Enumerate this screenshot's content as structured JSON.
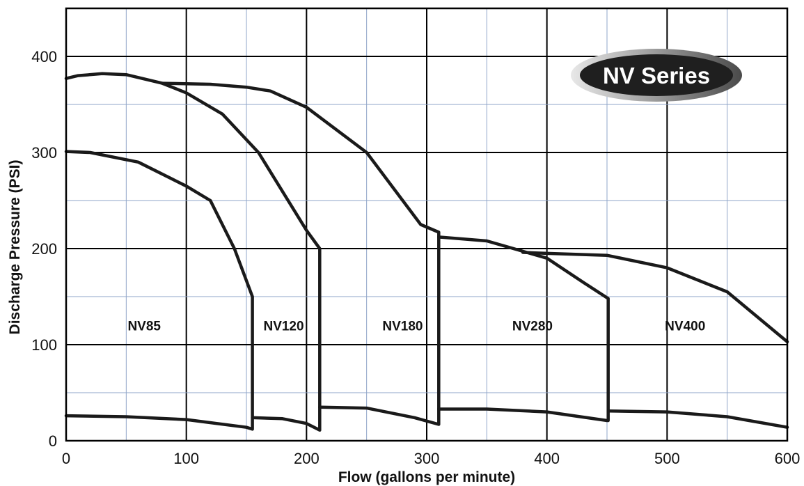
{
  "chart_data": {
    "type": "line",
    "badge": "NV Series",
    "xlabel": "Flow (gallons per minute)",
    "ylabel": "Discharge Pressure (PSI)",
    "xlim": [
      0,
      600
    ],
    "ylim": [
      0,
      450
    ],
    "x_ticks": [
      0,
      100,
      200,
      300,
      400,
      500,
      600
    ],
    "y_ticks": [
      0,
      100,
      200,
      300,
      400
    ],
    "grid": true,
    "minor_grid_step": 50,
    "colors": {
      "major_grid": "#000000",
      "minor_grid": "#8fa4c8",
      "curve": "#1a1a1a",
      "badge": "#1f1f1f"
    },
    "regions": [
      {
        "label": "NV85",
        "x": 65,
        "y": 120
      },
      {
        "label": "NV120",
        "x": 181,
        "y": 120
      },
      {
        "label": "NV180",
        "x": 280,
        "y": 120
      },
      {
        "label": "NV280",
        "x": 388,
        "y": 120
      },
      {
        "label": "NV400",
        "x": 515,
        "y": 120
      }
    ],
    "series": [
      {
        "points": [
          [
            0,
            26
          ],
          [
            50,
            25
          ],
          [
            100,
            22
          ],
          [
            150,
            14
          ],
          [
            155,
            12
          ],
          [
            155,
            150
          ],
          [
            140,
            200
          ],
          [
            120,
            250
          ],
          [
            100,
            265
          ],
          [
            60,
            290
          ],
          [
            20,
            300
          ],
          [
            0,
            301
          ]
        ]
      },
      {
        "points": [
          [
            155,
            24
          ],
          [
            180,
            23
          ],
          [
            200,
            18
          ],
          [
            211,
            11
          ],
          [
            211,
            200
          ],
          [
            200,
            219
          ],
          [
            160,
            300
          ],
          [
            130,
            340
          ],
          [
            100,
            362
          ],
          [
            80,
            372
          ],
          [
            50,
            381
          ],
          [
            30,
            382
          ],
          [
            10,
            380
          ],
          [
            0,
            377
          ]
        ]
      },
      {
        "points": [
          [
            211,
            35
          ],
          [
            250,
            34
          ],
          [
            290,
            24
          ],
          [
            310,
            17
          ],
          [
            310,
            217
          ],
          [
            295,
            225
          ],
          [
            250,
            300
          ],
          [
            200,
            347
          ],
          [
            170,
            364
          ],
          [
            150,
            368
          ],
          [
            120,
            371
          ],
          [
            80,
            372
          ]
        ]
      },
      {
        "points": [
          [
            310,
            33
          ],
          [
            350,
            33
          ],
          [
            400,
            30
          ],
          [
            450,
            21
          ],
          [
            451,
            21
          ],
          [
            451,
            148
          ],
          [
            430,
            165
          ],
          [
            400,
            190
          ],
          [
            350,
            208
          ],
          [
            310,
            212
          ]
        ]
      },
      {
        "points": [
          [
            451,
            31
          ],
          [
            500,
            30
          ],
          [
            550,
            25
          ],
          [
            600,
            14
          ]
        ]
      },
      {
        "points": [
          [
            380,
            196
          ],
          [
            400,
            195
          ],
          [
            450,
            193
          ],
          [
            500,
            180
          ],
          [
            550,
            155
          ],
          [
            600,
            103
          ]
        ]
      }
    ]
  }
}
